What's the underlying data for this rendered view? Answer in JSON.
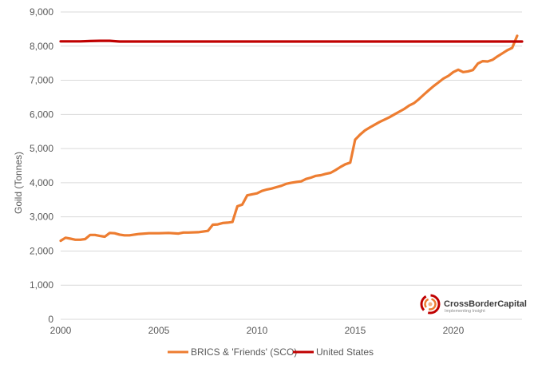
{
  "chart_data": {
    "type": "line",
    "title": "",
    "xlabel": "",
    "ylabel": "Goild (Tonnes)",
    "xlim": [
      2000,
      2023.5
    ],
    "ylim": [
      0,
      9000
    ],
    "x_ticks": [
      2000,
      2005,
      2010,
      2015,
      2020
    ],
    "y_ticks": [
      0,
      1000,
      2000,
      3000,
      4000,
      5000,
      6000,
      7000,
      8000,
      9000
    ],
    "y_tick_labels": [
      "0",
      "1,000",
      "2,000",
      "3,000",
      "4,000",
      "5,000",
      "6,000",
      "7,000",
      "8,000",
      "9,000"
    ],
    "grid": "horizontal",
    "legend_position": "bottom",
    "series": [
      {
        "name": "BRICS & 'Friends' (SCO)",
        "color": "#ED7D31",
        "x": [
          2000.0,
          2000.25,
          2000.5,
          2000.75,
          2001.0,
          2001.25,
          2001.5,
          2001.75,
          2002.0,
          2002.25,
          2002.5,
          2002.75,
          2003.0,
          2003.25,
          2003.5,
          2003.75,
          2004.0,
          2004.5,
          2005.0,
          2005.5,
          2006.0,
          2006.25,
          2006.5,
          2007.0,
          2007.5,
          2007.75,
          2008.0,
          2008.25,
          2008.5,
          2008.75,
          2009.0,
          2009.25,
          2009.5,
          2009.75,
          2010.0,
          2010.25,
          2010.5,
          2010.75,
          2011.0,
          2011.25,
          2011.5,
          2011.75,
          2012.0,
          2012.25,
          2012.5,
          2012.75,
          2013.0,
          2013.25,
          2013.5,
          2013.75,
          2014.0,
          2014.25,
          2014.5,
          2014.75,
          2015.0,
          2015.25,
          2015.5,
          2015.75,
          2016.0,
          2016.25,
          2016.5,
          2016.75,
          2017.0,
          2017.25,
          2017.5,
          2017.75,
          2018.0,
          2018.25,
          2018.5,
          2018.75,
          2019.0,
          2019.25,
          2019.5,
          2019.75,
          2020.0,
          2020.25,
          2020.5,
          2020.75,
          2021.0,
          2021.25,
          2021.5,
          2021.75,
          2022.0,
          2022.25,
          2022.5,
          2022.75,
          2023.0,
          2023.25
        ],
        "values": [
          2300,
          2390,
          2360,
          2330,
          2330,
          2350,
          2470,
          2470,
          2440,
          2420,
          2530,
          2520,
          2480,
          2460,
          2460,
          2480,
          2500,
          2520,
          2520,
          2530,
          2510,
          2540,
          2540,
          2550,
          2590,
          2770,
          2780,
          2820,
          2830,
          2850,
          3310,
          3360,
          3630,
          3660,
          3690,
          3760,
          3800,
          3830,
          3870,
          3910,
          3970,
          4000,
          4020,
          4040,
          4110,
          4150,
          4200,
          4220,
          4260,
          4290,
          4370,
          4460,
          4540,
          4590,
          5260,
          5410,
          5530,
          5620,
          5700,
          5780,
          5850,
          5920,
          6000,
          6080,
          6160,
          6260,
          6330,
          6450,
          6580,
          6710,
          6830,
          6940,
          7050,
          7130,
          7240,
          7310,
          7240,
          7260,
          7300,
          7490,
          7560,
          7550,
          7600,
          7700,
          7790,
          7880,
          7950,
          8300
        ]
      },
      {
        "name": "United States",
        "color": "#C00000",
        "x": [
          2000.0,
          2001.0,
          2001.5,
          2002.0,
          2002.5,
          2003.0,
          2005.0,
          2010.0,
          2015.0,
          2020.0,
          2023.5
        ],
        "values": [
          8140,
          8140,
          8150,
          8155,
          8155,
          8135,
          8135,
          8135,
          8134,
          8134,
          8134
        ]
      }
    ]
  },
  "logo": {
    "name": "CrossBorderCapital",
    "tagline": "Implementing Insight"
  }
}
